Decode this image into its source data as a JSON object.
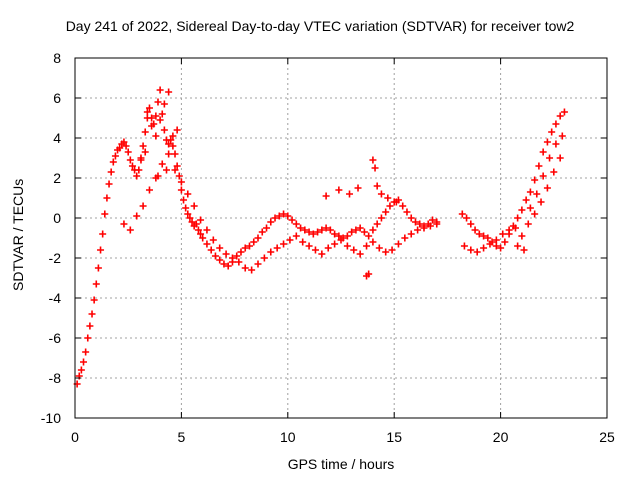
{
  "chart_data": {
    "type": "scatter",
    "title": "Day 241 of 2022, Sidereal Day-to-day VTEC variation (SDTVAR) for receiver tow2",
    "xlabel": "GPS time / hours",
    "ylabel": "SDTVAR / TECUs",
    "xlim": [
      0,
      25
    ],
    "ylim": [
      -10,
      8
    ],
    "xticks": [
      "0",
      "5",
      "10",
      "15",
      "20",
      "25"
    ],
    "yticks": [
      "-10",
      "-8",
      "-6",
      "-4",
      "-2",
      "0",
      "2",
      "4",
      "6",
      "8"
    ],
    "grid": true,
    "marker": "+",
    "series_color": "#ff0000",
    "series": [
      {
        "name": "tow2",
        "x": [
          0.1,
          0.2,
          0.3,
          0.4,
          0.5,
          0.6,
          0.7,
          0.8,
          0.9,
          1.0,
          1.1,
          1.2,
          1.3,
          1.4,
          1.5,
          1.6,
          1.7,
          1.8,
          1.9,
          2.0,
          2.1,
          2.2,
          2.3,
          2.4,
          2.5,
          2.6,
          2.7,
          2.8,
          2.9,
          3.0,
          3.1,
          3.2,
          3.3,
          3.4,
          3.5,
          3.6,
          3.7,
          3.8,
          3.9,
          4.0,
          4.1,
          4.2,
          4.3,
          4.4,
          4.5,
          4.6,
          4.7,
          4.8,
          4.9,
          5.0,
          5.1,
          5.2,
          5.3,
          5.4,
          5.5,
          5.6,
          5.7,
          5.8,
          5.9,
          6.0,
          6.2,
          6.4,
          6.6,
          6.8,
          7.0,
          7.2,
          7.4,
          7.6,
          7.8,
          8.0,
          8.2,
          8.4,
          8.6,
          8.8,
          9.0,
          9.2,
          9.4,
          9.6,
          9.8,
          10.0,
          10.2,
          10.4,
          10.6,
          10.8,
          11.0,
          11.2,
          11.4,
          11.6,
          11.8,
          12.0,
          12.2,
          12.4,
          12.6,
          12.8,
          13.0,
          13.2,
          13.4,
          13.6,
          13.8,
          14.0,
          14.2,
          14.4,
          14.6,
          14.8,
          15.0,
          15.2,
          15.4,
          15.6,
          15.8,
          16.0,
          16.2,
          16.4,
          16.6,
          16.8,
          17.0,
          18.2,
          18.4,
          18.6,
          18.8,
          19.0,
          19.2,
          19.4,
          19.6,
          19.8,
          20.0,
          20.2,
          20.4,
          20.6,
          20.8,
          21.0,
          21.2,
          21.4,
          21.6,
          21.8,
          22.0,
          22.2,
          22.4,
          22.6,
          22.8,
          23.0,
          2.3,
          2.6,
          2.9,
          3.2,
          3.5,
          3.8,
          4.1,
          4.4,
          4.7,
          5.0,
          5.3,
          5.6,
          5.9,
          6.2,
          6.5,
          6.8,
          7.1,
          7.4,
          7.7,
          8.0,
          8.3,
          8.6,
          8.9,
          9.2,
          9.5,
          9.8,
          10.1,
          10.4,
          10.7,
          11.0,
          11.3,
          11.6,
          11.9,
          12.2,
          12.5,
          12.8,
          13.1,
          13.4,
          13.7,
          14.0,
          14.3,
          14.6,
          14.9,
          15.2,
          15.5,
          15.8,
          16.1,
          16.4,
          16.7,
          17.0,
          18.3,
          18.6,
          18.9,
          19.2,
          19.5,
          19.8,
          20.1,
          20.4,
          20.7,
          21.0,
          21.3,
          21.6,
          21.9,
          22.2,
          22.5,
          22.8,
          3.4,
          3.6,
          3.8,
          4.0,
          4.2,
          4.4,
          3.1,
          3.3,
          3.9,
          4.3,
          4.6,
          4.8,
          13.7,
          13.8,
          14.0,
          14.2,
          14.4,
          14.1,
          12.9,
          13.3,
          11.8,
          12.4,
          14.7,
          15.1,
          20.8,
          21.1,
          21.4,
          21.7,
          22.0,
          22.3,
          22.6,
          22.9
        ],
        "y": [
          -8.3,
          -7.9,
          -7.6,
          -7.2,
          -6.7,
          -6.0,
          -5.4,
          -4.8,
          -4.1,
          -3.3,
          -2.5,
          -1.6,
          -0.8,
          0.2,
          1.0,
          1.7,
          2.3,
          2.8,
          3.1,
          3.4,
          3.5,
          3.7,
          3.8,
          3.6,
          3.3,
          2.9,
          2.6,
          2.4,
          2.1,
          2.4,
          2.9,
          3.6,
          4.3,
          5.0,
          5.5,
          5.0,
          4.7,
          5.1,
          5.8,
          6.4,
          5.2,
          4.4,
          3.9,
          3.7,
          3.9,
          3.6,
          3.2,
          2.6,
          2.1,
          1.4,
          0.9,
          0.5,
          0.2,
          0.0,
          -0.2,
          -0.4,
          -0.3,
          -0.6,
          -0.8,
          -1.0,
          -1.3,
          -1.6,
          -1.9,
          -2.1,
          -2.3,
          -2.4,
          -2.2,
          -1.9,
          -1.7,
          -1.5,
          -1.4,
          -1.2,
          -1.0,
          -0.7,
          -0.5,
          -0.2,
          0.0,
          0.1,
          0.2,
          0.1,
          -0.1,
          -0.3,
          -0.5,
          -0.6,
          -0.7,
          -0.8,
          -0.7,
          -0.6,
          -0.5,
          -0.6,
          -0.8,
          -0.9,
          -1.0,
          -0.9,
          -0.7,
          -0.6,
          -0.5,
          -0.7,
          -0.9,
          -0.6,
          -0.3,
          0.0,
          0.3,
          0.6,
          0.8,
          0.9,
          0.6,
          0.3,
          0.0,
          -0.2,
          -0.3,
          -0.4,
          -0.3,
          -0.1,
          -0.2,
          0.2,
          0.0,
          -0.3,
          -0.6,
          -0.8,
          -0.9,
          -1.0,
          -1.2,
          -1.4,
          -1.5,
          -1.2,
          -0.8,
          -0.4,
          0.0,
          0.4,
          0.9,
          1.3,
          1.9,
          2.6,
          3.3,
          3.8,
          4.3,
          4.7,
          5.1,
          5.3,
          -0.3,
          -0.6,
          0.1,
          0.6,
          1.4,
          2.0,
          2.7,
          3.2,
          2.4,
          1.8,
          1.2,
          0.6,
          -0.1,
          -0.6,
          -1.1,
          -1.5,
          -1.8,
          -2.0,
          -2.2,
          -2.5,
          -2.6,
          -2.3,
          -2.0,
          -1.7,
          -1.5,
          -1.3,
          -1.1,
          -0.9,
          -1.2,
          -1.4,
          -1.6,
          -1.8,
          -1.5,
          -1.3,
          -1.1,
          -1.4,
          -1.6,
          -1.8,
          -1.4,
          -1.2,
          -1.5,
          -1.7,
          -1.6,
          -1.3,
          -1.0,
          -0.8,
          -0.6,
          -0.5,
          -0.4,
          -0.3,
          -1.4,
          -1.6,
          -1.7,
          -1.5,
          -1.3,
          -1.1,
          -0.8,
          -0.6,
          -0.5,
          -0.9,
          -0.3,
          0.2,
          0.8,
          1.5,
          2.3,
          3.0,
          5.3,
          4.6,
          4.1,
          4.9,
          5.7,
          6.3,
          3.0,
          3.3,
          2.1,
          2.4,
          4.1,
          4.4,
          -2.9,
          -2.8,
          2.9,
          1.6,
          1.2,
          2.5,
          1.2,
          1.5,
          1.1,
          1.4,
          1.0,
          0.8,
          -1.4,
          -1.6,
          0.5,
          1.2,
          2.1,
          3.0,
          3.7,
          4.1
        ]
      }
    ]
  }
}
